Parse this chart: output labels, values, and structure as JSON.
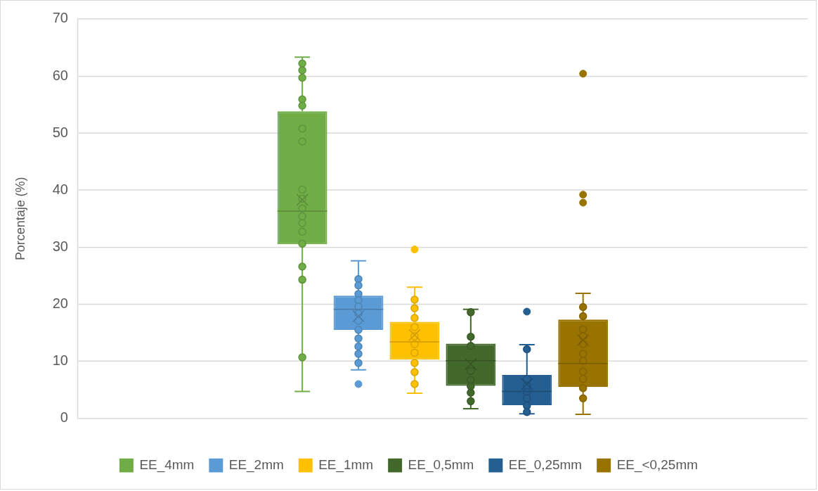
{
  "chart_data": {
    "type": "box",
    "categories": [
      null
    ],
    "ylabel": "Porcentaje (%)",
    "ylim": [
      0,
      70
    ],
    "yticks": [
      0,
      10,
      20,
      30,
      40,
      50,
      60,
      70
    ],
    "grid": "y",
    "legend": "bottom",
    "marker": "circle",
    "series": [
      {
        "name": "EE_4mm",
        "color": "#70ad47",
        "boxes": [
          {
            "low": 4.7,
            "q1": 30.5,
            "median": 36.3,
            "q3": 53.8,
            "high": 63.3,
            "mean": 38.3
          }
        ]
      },
      {
        "name": "EE_2mm",
        "color": "#5b9bd5",
        "boxes": [
          {
            "low": 8.5,
            "q1": 15.5,
            "median": 19.1,
            "q3": 21.5,
            "high": 27.6,
            "mean": 17.9,
            "outliers": [
              6.0
            ]
          }
        ]
      },
      {
        "name": "EE_1mm",
        "color": "#ffc000",
        "boxes": [
          {
            "low": 4.4,
            "q1": 10.3,
            "median": 13.4,
            "q3": 16.9,
            "high": 23.0,
            "mean": 14.6,
            "outliers": [
              29.6
            ]
          }
        ]
      },
      {
        "name": "EE_0,5mm",
        "color": "#43682b",
        "boxes": [
          {
            "low": 1.7,
            "q1": 5.7,
            "median": 10.1,
            "q3": 13.1,
            "high": 19.1,
            "mean": 9.5
          }
        ]
      },
      {
        "name": "EE_0,25mm",
        "color": "#255e91",
        "boxes": [
          {
            "low": 0.8,
            "q1": 2.3,
            "median": 4.7,
            "q3": 7.6,
            "high": 12.9,
            "mean": 6.0,
            "outliers": [
              18.7
            ]
          }
        ]
      },
      {
        "name": "EE_<0,25mm",
        "color": "#997300",
        "boxes": [
          {
            "low": 0.7,
            "q1": 5.5,
            "median": 9.6,
            "q3": 17.3,
            "high": 21.9,
            "mean": 13.7,
            "outliers": [
              60.4,
              39.2,
              37.8
            ]
          }
        ]
      },
      {
        "type": "scatter",
        "color": "#70ad47",
        "x": [
          null,
          null,
          null,
          null,
          null,
          null,
          null,
          null,
          null,
          null,
          null,
          null,
          null,
          null,
          null,
          null,
          null
        ],
        "values": [
          62.2,
          61.0,
          59.7,
          55.9,
          54.8,
          50.8,
          48.5,
          40.1,
          38.5,
          36.8,
          35.4,
          34.2,
          32.7,
          30.6,
          26.6,
          24.3,
          10.7
        ]
      },
      {
        "type": "scatter",
        "color": "#5b9bd5",
        "x": [
          null,
          null,
          null,
          null,
          null,
          null,
          null,
          null,
          null,
          null,
          null,
          null
        ],
        "values": [
          24.4,
          23.3,
          21.8,
          20.7,
          19.6,
          18.4,
          17.1,
          15.5,
          14.0,
          12.6,
          11.3,
          9.7
        ]
      },
      {
        "type": "scatter",
        "color": "#ffc000",
        "x": [
          null,
          null,
          null,
          null,
          null,
          null,
          null,
          null,
          null,
          null
        ],
        "values": [
          20.8,
          19.3,
          17.6,
          16.0,
          14.4,
          13.0,
          11.5,
          9.7,
          8.1,
          6.0
        ]
      },
      {
        "type": "scatter",
        "color": "#43682b",
        "x": [
          null,
          null,
          null,
          null,
          null,
          null,
          null,
          null
        ],
        "values": [
          18.6,
          14.3,
          12.7,
          8.3,
          6.7,
          5.6,
          4.5,
          3.0
        ]
      },
      {
        "type": "scatter",
        "color": "#255e91",
        "x": [
          null,
          null,
          null,
          null,
          null,
          null,
          null
        ],
        "values": [
          12.1,
          6.9,
          5.7,
          4.6,
          3.5,
          2.2,
          1.1
        ]
      },
      {
        "type": "scatter",
        "color": "#997300",
        "x": [
          null,
          null,
          null,
          null,
          null,
          null,
          null,
          null,
          null,
          null,
          null
        ],
        "values": [
          19.5,
          17.9,
          15.6,
          14.4,
          13.0,
          11.3,
          10.1,
          8.2,
          6.9,
          5.3,
          3.5
        ]
      }
    ]
  }
}
